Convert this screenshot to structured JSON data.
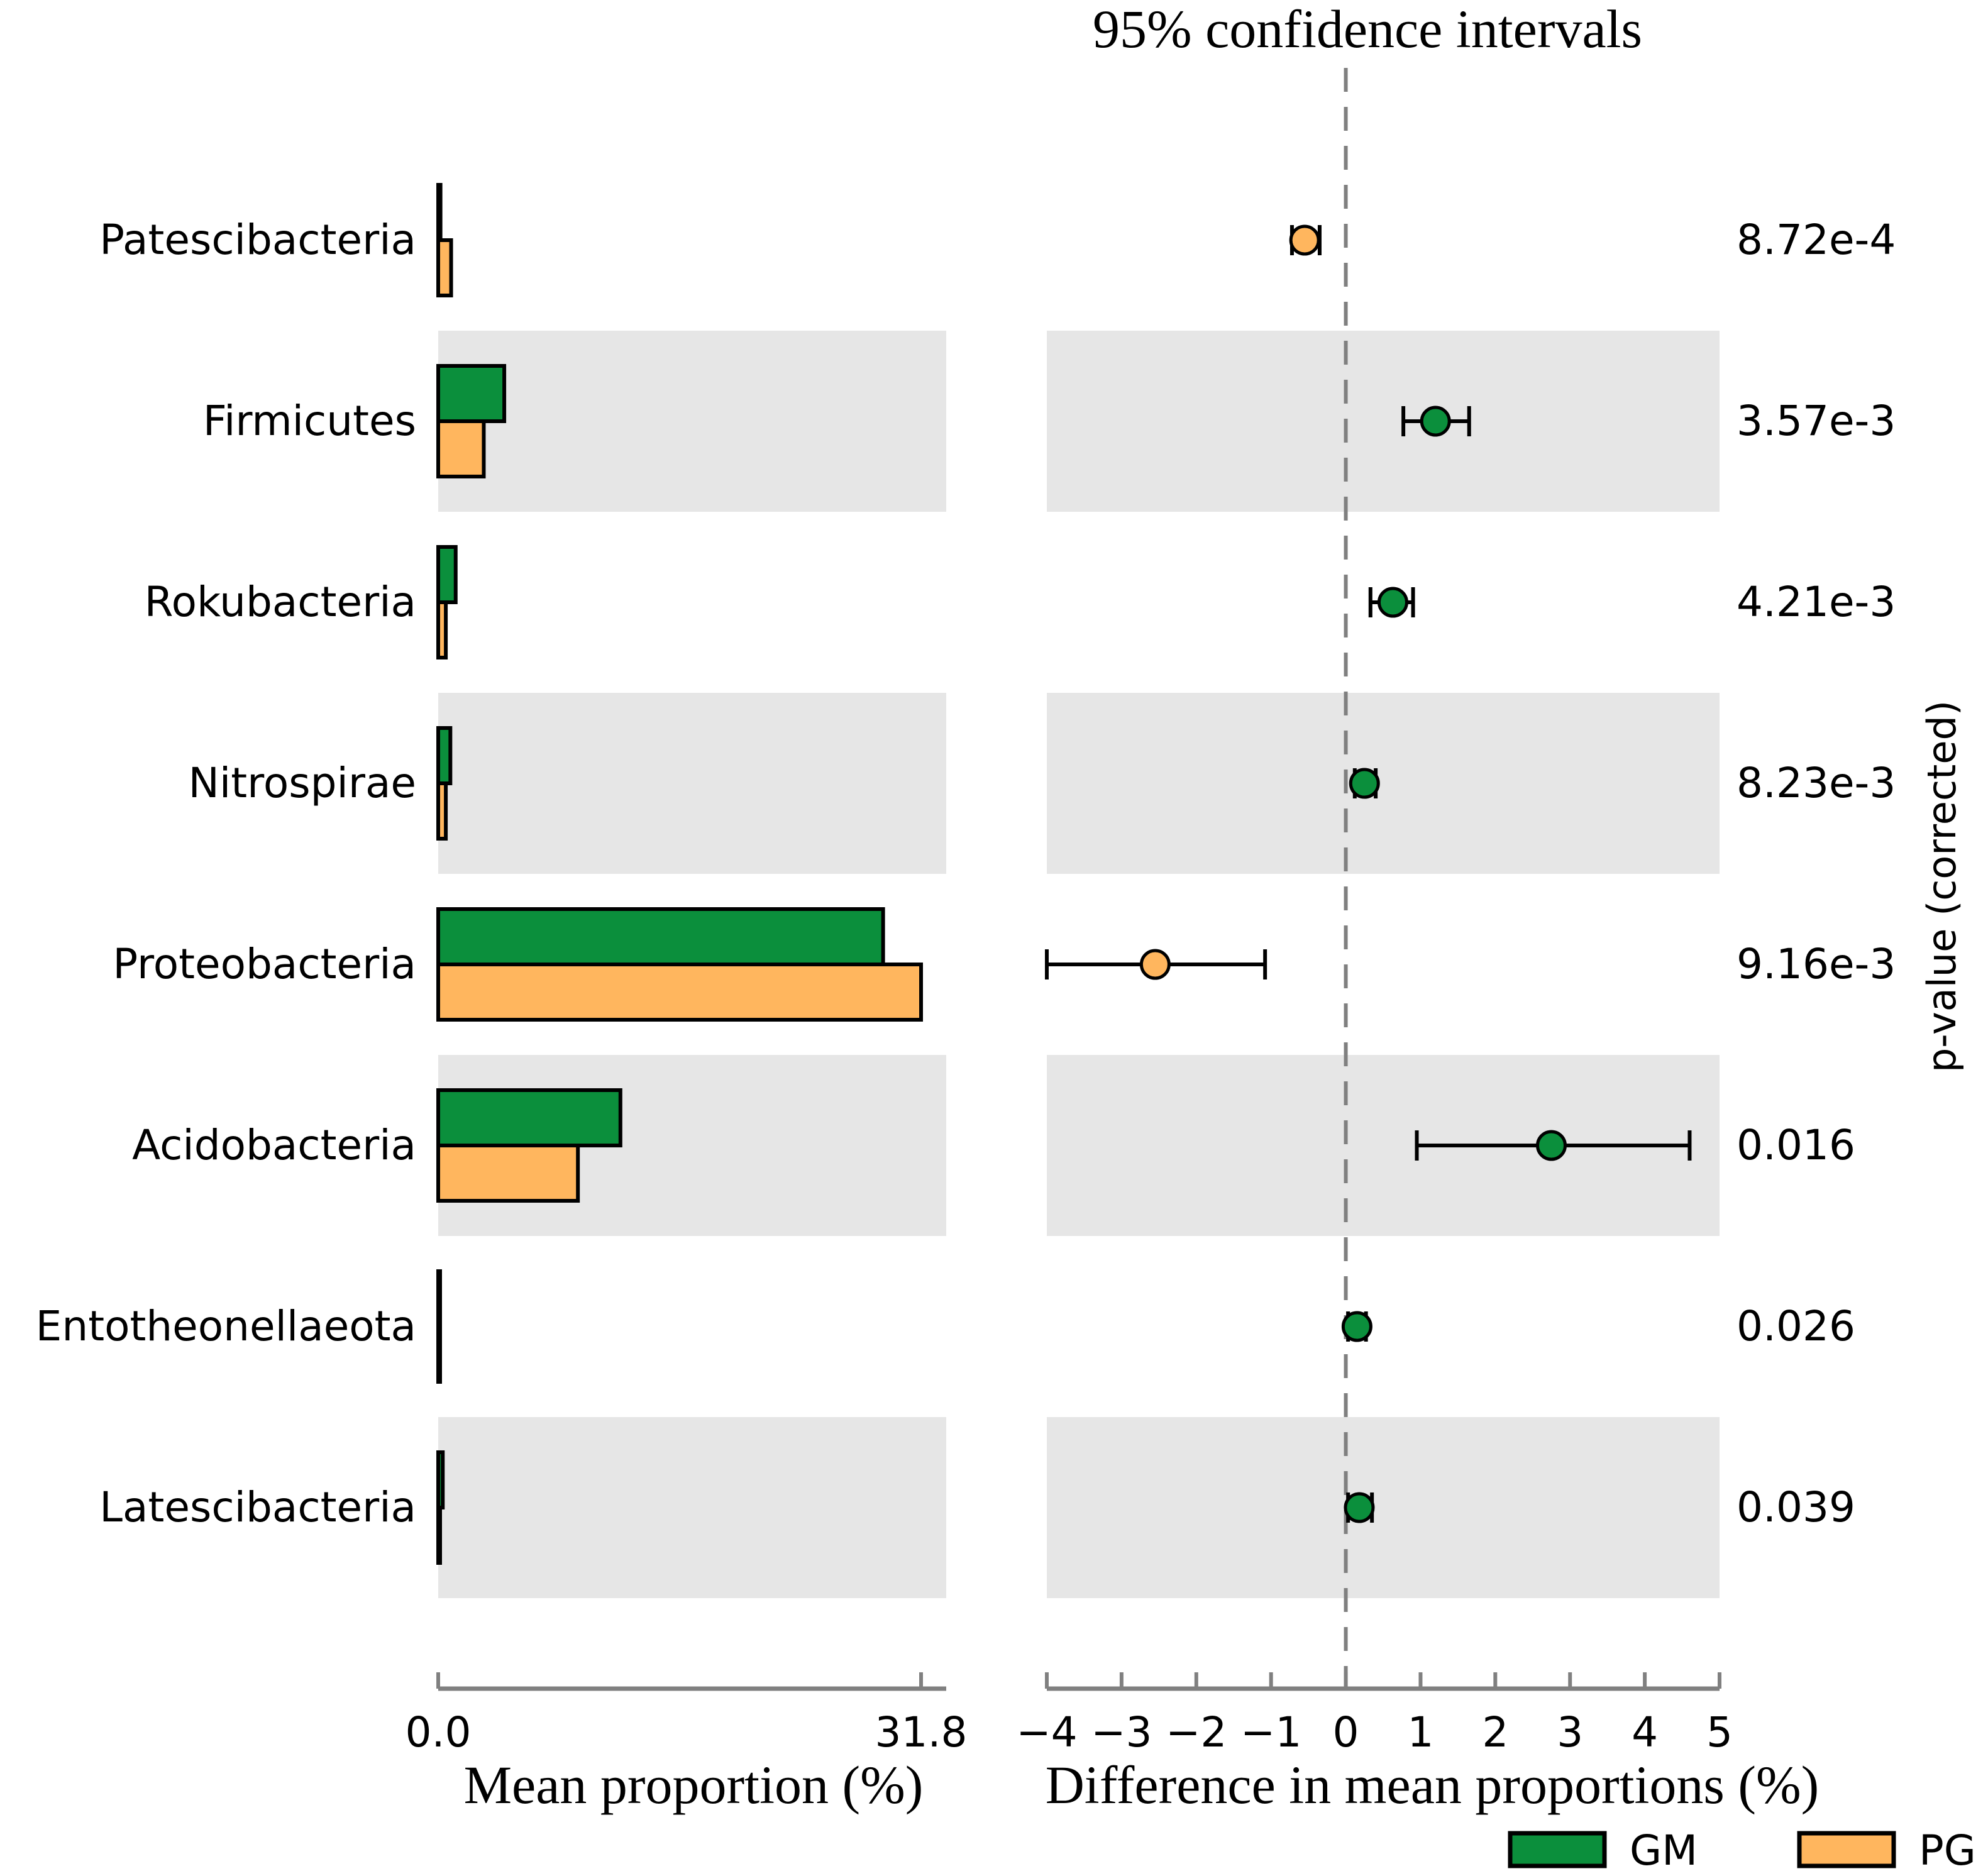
{
  "chart_data": [
    {
      "type": "bar",
      "xlabel": "Mean proportion (%)",
      "xlim": [
        0.0,
        31.8
      ],
      "tick_labels": [
        "0.0",
        "31.8"
      ],
      "categories": [
        "Patescibacteria",
        "Firmicutes",
        "Rokubacteria",
        "Nitrospirae",
        "Proteobacteria",
        "Acidobacteria",
        "Entotheonellaeota",
        "Latescibacteria"
      ],
      "series": [
        {
          "name": "GM",
          "color": "#0b8f3c",
          "values": [
            0.15,
            4.35,
            1.15,
            0.8,
            29.3,
            12.0,
            0.12,
            0.3
          ]
        },
        {
          "name": "PG",
          "color": "#ffb65e",
          "values": [
            0.85,
            3.0,
            0.5,
            0.5,
            31.8,
            9.2,
            0.05,
            0.1
          ]
        }
      ]
    },
    {
      "type": "scatter",
      "title": "95% confidence intervals",
      "xlabel": "Difference in mean proportions (%)",
      "xlim": [
        -4,
        5
      ],
      "ticks": [
        -4,
        -3,
        -2,
        -1,
        0,
        1,
        2,
        3,
        4,
        5
      ],
      "tick_labels": [
        "−4",
        "−3",
        "−2",
        "−1",
        "0",
        "1",
        "2",
        "3",
        "4",
        "5"
      ],
      "categories": [
        "Patescibacteria",
        "Firmicutes",
        "Rokubacteria",
        "Nitrospirae",
        "Proteobacteria",
        "Acidobacteria",
        "Entotheonellaeota",
        "Latescibacteria"
      ],
      "points": [
        {
          "category": "Patescibacteria",
          "value": -0.55,
          "ci": [
            -0.72,
            -0.35
          ],
          "group": "PG"
        },
        {
          "category": "Firmicutes",
          "value": 1.2,
          "ci": [
            0.77,
            1.65
          ],
          "group": "GM"
        },
        {
          "category": "Rokubacteria",
          "value": 0.63,
          "ci": [
            0.33,
            0.9
          ],
          "group": "GM"
        },
        {
          "category": "Nitrospirae",
          "value": 0.25,
          "ci": [
            0.12,
            0.4
          ],
          "group": "GM"
        },
        {
          "category": "Proteobacteria",
          "value": -2.55,
          "ci": [
            -4.0,
            -1.08
          ],
          "group": "PG"
        },
        {
          "category": "Acidobacteria",
          "value": 2.75,
          "ci": [
            0.95,
            4.6
          ],
          "group": "GM"
        },
        {
          "category": "Entotheonellaeota",
          "value": 0.15,
          "ci": [
            0.03,
            0.27
          ],
          "group": "GM"
        },
        {
          "category": "Latescibacteria",
          "value": 0.18,
          "ci": [
            0.03,
            0.35
          ],
          "group": "GM"
        }
      ],
      "p_values": [
        "8.72e-4",
        "3.57e-3",
        "4.21e-3",
        "8.23e-3",
        "9.16e-3",
        "0.016",
        "0.026",
        "0.039"
      ],
      "p_axis_label": "p-value (corrected)"
    }
  ],
  "legend": [
    {
      "label": "GM",
      "color": "#0b8f3c"
    },
    {
      "label": "PG",
      "color": "#ffb65e"
    }
  ],
  "colors": {
    "band": "#e6e6e6",
    "axis": "#808080",
    "zero_line": "#808080",
    "outline": "#000000"
  }
}
